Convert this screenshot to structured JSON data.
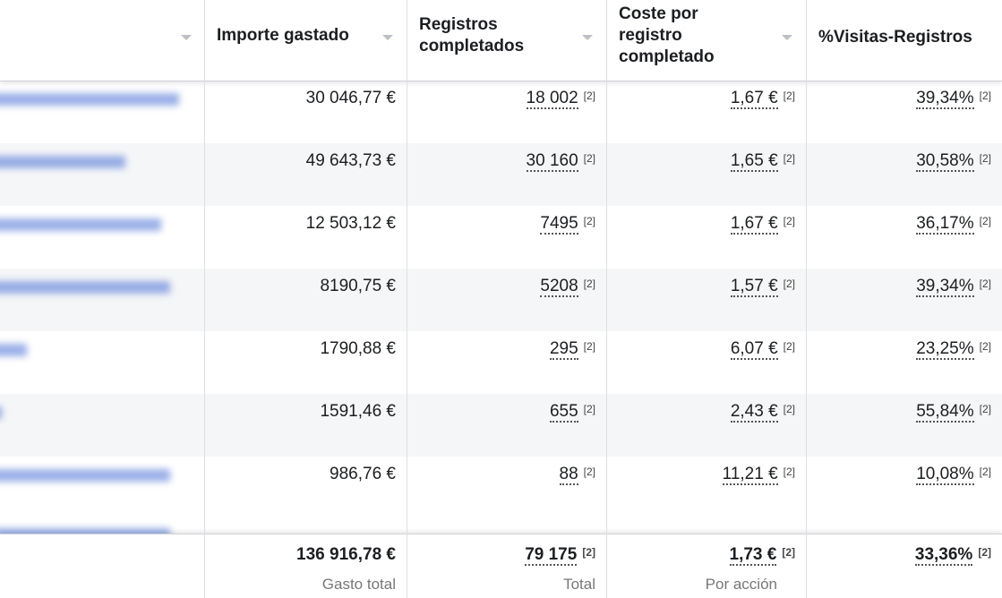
{
  "table": {
    "headers": [
      "Importe gastado",
      "Registros completados",
      "Coste por registro completado",
      "%Visitas-Registros"
    ],
    "note": "[2]",
    "rows": [
      [
        "30 046,77 €",
        "18 002",
        "1,67 €",
        "39,34%"
      ],
      [
        "49 643,73 €",
        "30 160",
        "1,65 €",
        "30,58%"
      ],
      [
        "12 503,12 €",
        "7495",
        "1,67 €",
        "36,17%"
      ],
      [
        "8190,75 €",
        "5208",
        "1,57 €",
        "39,34%"
      ],
      [
        "1790,88 €",
        "295",
        "6,07 €",
        "23,25%"
      ],
      [
        "1591,46 €",
        "655",
        "2,43 €",
        "55,84%"
      ],
      [
        "986,76 €",
        "88",
        "11,21 €",
        "10,08%"
      ]
    ],
    "totals": [
      "136 916,78 €",
      "79 175",
      "1,73 €",
      "33,36%"
    ],
    "total_labels": [
      "Gasto total",
      "Total",
      "Por acción",
      ""
    ]
  }
}
